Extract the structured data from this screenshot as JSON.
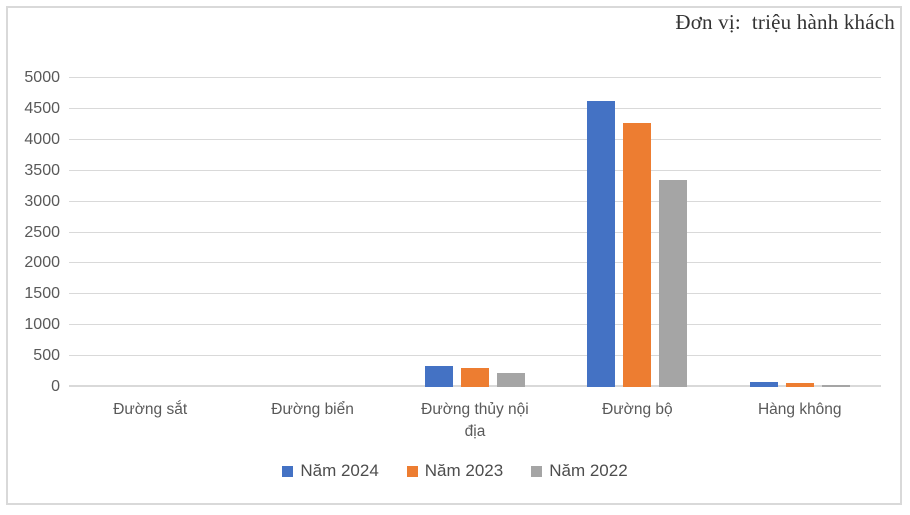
{
  "chart_data": {
    "type": "bar",
    "unit_label": "Đơn vị:  triệu hành khách",
    "categories": [
      "Đường sắt",
      "Đường biển",
      "Đường thủy nội địa",
      "Đường bộ",
      "Hàng không"
    ],
    "series": [
      {
        "name": "Năm 2024",
        "color": "#4472C4",
        "values": [
          0,
          0,
          345,
          4630,
          75
        ]
      },
      {
        "name": "Năm 2023",
        "color": "#ED7D31",
        "values": [
          0,
          0,
          305,
          4280,
          65
        ]
      },
      {
        "name": "Năm 2022",
        "color": "#A5A5A5",
        "values": [
          0,
          0,
          230,
          3350,
          40
        ]
      }
    ],
    "xlabel": "",
    "ylabel": "",
    "ylim": [
      0,
      5000
    ],
    "yticks": [
      0,
      500,
      1000,
      1500,
      2000,
      2500,
      3000,
      3500,
      4000,
      4500,
      5000
    ],
    "grid": true,
    "legend_position": "bottom",
    "colors": {
      "gridline": "#D9D9D9",
      "axis_label_text": "#595959",
      "legend_text": "#4d4d4d",
      "title_text": "#333333",
      "frame_border": "#D9D9D9",
      "background": "#ffffff"
    }
  }
}
